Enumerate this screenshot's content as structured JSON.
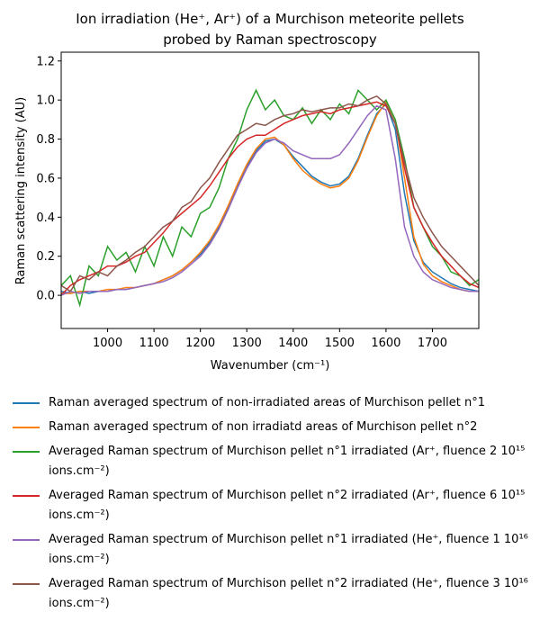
{
  "chart_data": {
    "type": "line",
    "title": [
      "Ion irradiation (He⁺, Ar⁺) of a Murchison meteorite pellets",
      "probed by Raman spectroscopy"
    ],
    "xlabel": "Wavenumber (cm⁻¹)",
    "ylabel": "Raman scattering intensity (AU)",
    "x": [
      900,
      920,
      940,
      960,
      980,
      1000,
      1020,
      1040,
      1060,
      1080,
      1100,
      1120,
      1140,
      1160,
      1180,
      1200,
      1220,
      1240,
      1260,
      1280,
      1300,
      1320,
      1340,
      1360,
      1380,
      1400,
      1420,
      1440,
      1460,
      1480,
      1500,
      1520,
      1540,
      1560,
      1580,
      1600,
      1620,
      1640,
      1660,
      1680,
      1700,
      1720,
      1740,
      1760,
      1780,
      1800
    ],
    "xlim": [
      900,
      1800
    ],
    "xticks": [
      1000,
      1100,
      1200,
      1300,
      1400,
      1500,
      1600,
      1700
    ],
    "ylim": [
      -0.17,
      1.245
    ],
    "yticks": [
      {
        "value": 0,
        "label": "0.0"
      },
      0.2,
      0.4,
      0.6,
      0.8,
      {
        "value": 1,
        "label": "1.0"
      },
      1.2
    ],
    "grid": false,
    "series": [
      {
        "name": "Raman averaged spectrum of non-irradiated areas of Murchison pellet n°1",
        "color": "#1f77b4",
        "values": [
          0.02,
          0.01,
          0.02,
          0.01,
          0.02,
          0.02,
          0.03,
          0.03,
          0.04,
          0.05,
          0.06,
          0.08,
          0.1,
          0.13,
          0.17,
          0.21,
          0.27,
          0.35,
          0.45,
          0.56,
          0.66,
          0.74,
          0.79,
          0.8,
          0.77,
          0.71,
          0.66,
          0.61,
          0.58,
          0.56,
          0.57,
          0.61,
          0.7,
          0.82,
          0.93,
          0.98,
          0.85,
          0.52,
          0.28,
          0.17,
          0.12,
          0.09,
          0.06,
          0.04,
          0.03,
          0.02
        ]
      },
      {
        "name": "Raman averaged spectrum of non irradiatd areas of Murchison pellet n°2",
        "color": "#ff7f0e",
        "values": [
          0.01,
          0.01,
          0.02,
          0.02,
          0.02,
          0.03,
          0.03,
          0.04,
          0.04,
          0.05,
          0.06,
          0.08,
          0.1,
          0.13,
          0.17,
          0.22,
          0.28,
          0.36,
          0.46,
          0.57,
          0.67,
          0.75,
          0.8,
          0.81,
          0.77,
          0.7,
          0.64,
          0.6,
          0.57,
          0.55,
          0.56,
          0.6,
          0.69,
          0.81,
          0.92,
          0.99,
          0.9,
          0.6,
          0.3,
          0.16,
          0.1,
          0.07,
          0.05,
          0.03,
          0.02,
          0.02
        ]
      },
      {
        "name": "Averaged Raman spectrum of Murchison pellet n°1 irradiated (Ar⁺, fluence 2 10¹⁵ ions.cm⁻²)",
        "color": "#2ca02c",
        "values": [
          0.05,
          0.1,
          -0.05,
          0.15,
          0.1,
          0.25,
          0.18,
          0.22,
          0.12,
          0.25,
          0.15,
          0.3,
          0.2,
          0.35,
          0.3,
          0.42,
          0.45,
          0.55,
          0.7,
          0.8,
          0.95,
          1.05,
          0.95,
          1.0,
          0.92,
          0.9,
          0.96,
          0.88,
          0.95,
          0.9,
          0.98,
          0.93,
          1.05,
          1.0,
          0.95,
          1.0,
          0.9,
          0.7,
          0.45,
          0.35,
          0.25,
          0.2,
          0.12,
          0.1,
          0.05,
          0.08
        ]
      },
      {
        "name": "Averaged Raman spectrum of Murchison pellet n°2 irradiated (Ar⁺, fluence 6 10¹⁵ ions.cm⁻²)",
        "color": "#d62728",
        "values": [
          0.0,
          0.05,
          0.08,
          0.1,
          0.12,
          0.15,
          0.15,
          0.17,
          0.2,
          0.22,
          0.27,
          0.32,
          0.38,
          0.42,
          0.46,
          0.5,
          0.56,
          0.63,
          0.7,
          0.76,
          0.8,
          0.82,
          0.82,
          0.85,
          0.88,
          0.9,
          0.92,
          0.93,
          0.94,
          0.93,
          0.95,
          0.96,
          0.97,
          0.98,
          0.99,
          0.97,
          0.88,
          0.65,
          0.45,
          0.35,
          0.27,
          0.2,
          0.15,
          0.1,
          0.06,
          0.04
        ]
      },
      {
        "name": "Averaged Raman spectrum of Murchison pellet n°1 irradiated (He⁺, fluence 1 10¹⁶ ions.cm⁻²)",
        "color": "#9467bd",
        "values": [
          0.0,
          0.02,
          0.01,
          0.02,
          0.02,
          0.02,
          0.03,
          0.03,
          0.04,
          0.05,
          0.06,
          0.07,
          0.09,
          0.12,
          0.16,
          0.2,
          0.26,
          0.34,
          0.44,
          0.55,
          0.65,
          0.73,
          0.78,
          0.8,
          0.78,
          0.74,
          0.72,
          0.7,
          0.7,
          0.7,
          0.72,
          0.78,
          0.85,
          0.92,
          0.97,
          0.95,
          0.7,
          0.35,
          0.2,
          0.12,
          0.08,
          0.06,
          0.04,
          0.03,
          0.02,
          0.02
        ]
      },
      {
        "name": "Averaged Raman spectrum of Murchison pellet n°2 irradiated (He⁺, fluence 3 10¹⁶ ions.cm⁻²)",
        "color": "#8c564b",
        "values": [
          0.05,
          0.02,
          0.1,
          0.08,
          0.12,
          0.1,
          0.15,
          0.18,
          0.22,
          0.25,
          0.3,
          0.35,
          0.38,
          0.45,
          0.48,
          0.55,
          0.6,
          0.68,
          0.75,
          0.82,
          0.85,
          0.88,
          0.87,
          0.9,
          0.92,
          0.93,
          0.95,
          0.94,
          0.95,
          0.96,
          0.96,
          0.98,
          0.97,
          1.0,
          1.02,
          0.98,
          0.88,
          0.68,
          0.5,
          0.4,
          0.32,
          0.25,
          0.2,
          0.15,
          0.1,
          0.05
        ]
      }
    ]
  }
}
